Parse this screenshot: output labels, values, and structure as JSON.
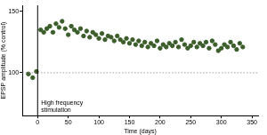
{
  "chart_data": {
    "type": "scatter",
    "x_label": "Time (days)",
    "y_label": "EPSP amplitude (% control)",
    "annotations": [
      {
        "text": [
          "High frequency",
          "stimulation"
        ]
      }
    ],
    "reference_lines": [
      {
        "axis": "y",
        "value": 100,
        "line_style": "dotted"
      },
      {
        "axis": "x",
        "value": 0,
        "line_style": "solid"
      }
    ],
    "x": [
      -15,
      -8,
      -2,
      5,
      10,
      15,
      20,
      25,
      30,
      35,
      40,
      45,
      50,
      55,
      60,
      65,
      70,
      75,
      80,
      85,
      90,
      95,
      100,
      105,
      110,
      115,
      120,
      125,
      130,
      135,
      140,
      145,
      150,
      155,
      160,
      165,
      170,
      175,
      180,
      185,
      190,
      195,
      200,
      205,
      210,
      215,
      220,
      225,
      230,
      235,
      240,
      245,
      250,
      255,
      260,
      265,
      270,
      275,
      280,
      285,
      290,
      295,
      300,
      305,
      310,
      315,
      320,
      325,
      330,
      335
    ],
    "values": [
      99,
      96,
      101,
      135,
      133,
      136,
      138,
      133,
      140,
      137,
      142,
      136,
      131,
      138,
      135,
      133,
      136,
      130,
      134,
      129,
      133,
      131,
      128,
      132,
      127,
      130,
      129,
      126,
      130,
      127,
      125,
      128,
      124,
      127,
      123,
      126,
      122,
      125,
      121,
      124,
      122,
      126,
      120,
      123,
      121,
      124,
      122,
      125,
      121,
      127,
      123,
      120,
      122,
      125,
      121,
      124,
      122,
      125,
      120,
      126,
      123,
      118,
      120,
      123,
      121,
      125,
      122,
      119,
      124,
      121
    ],
    "color": "#3b5e2b",
    "marker": "circle",
    "xlim": [
      -25,
      360
    ],
    "xticks": [
      0,
      50,
      100,
      150,
      200,
      250,
      300,
      350
    ],
    "ylim": [
      65,
      155
    ],
    "yticks": [
      100,
      150
    ],
    "grid": false
  }
}
